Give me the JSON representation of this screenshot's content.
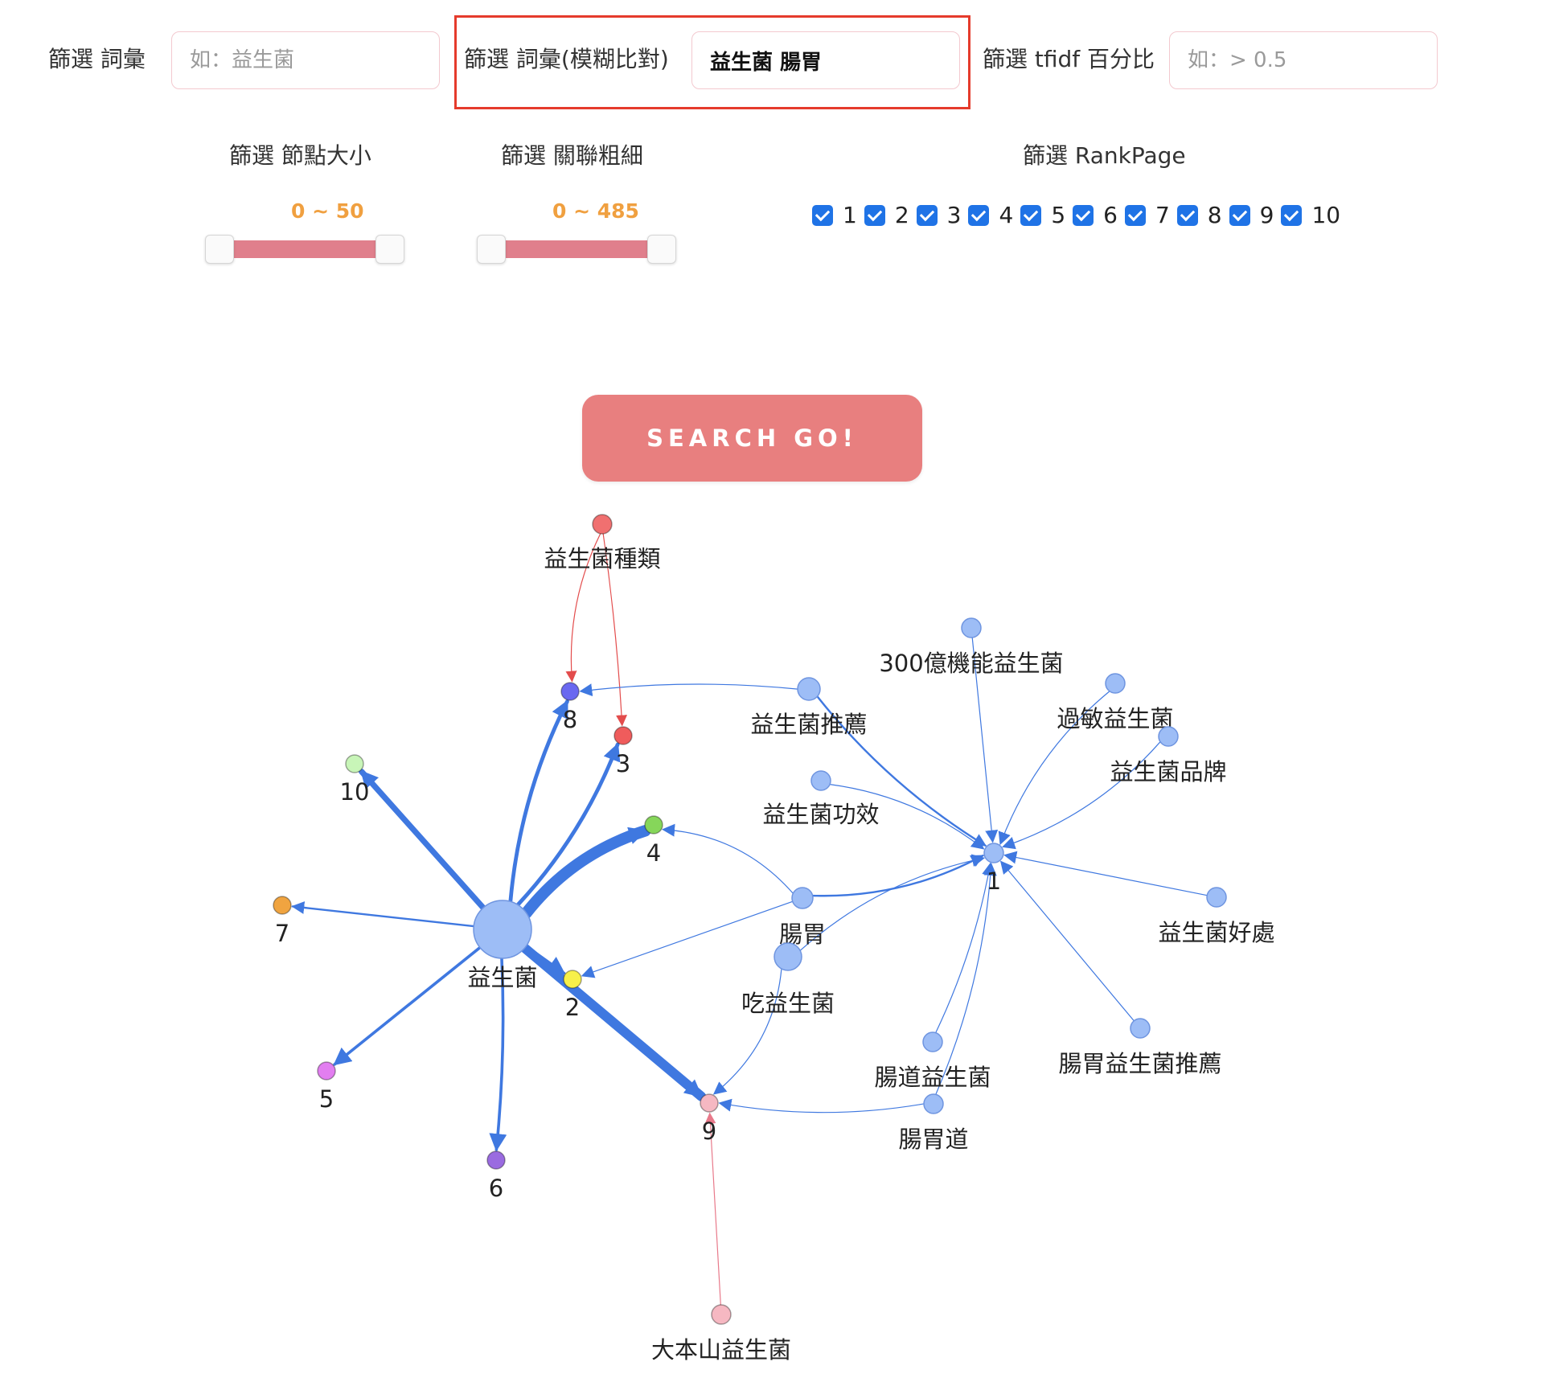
{
  "filters": {
    "term": {
      "label": "篩選 詞彙",
      "placeholder": "如：益生菌",
      "value": ""
    },
    "fuzzy": {
      "label": "篩選 詞彙(模糊比對)",
      "value": "益生菌 腸胃"
    },
    "tfidf": {
      "label": "篩選 tfidf 百分比",
      "placeholder": "如：> 0.5",
      "value": ""
    },
    "node_size": {
      "label": "篩選 節點大小",
      "range_text": "0 ~ 50"
    },
    "edge_width": {
      "label": "篩選 關聯粗細",
      "range_text": "0 ~ 485"
    },
    "rank_page": {
      "label": "篩選 RankPage",
      "options": [
        {
          "label": "1",
          "checked": true
        },
        {
          "label": "2",
          "checked": true
        },
        {
          "label": "3",
          "checked": true
        },
        {
          "label": "4",
          "checked": true
        },
        {
          "label": "5",
          "checked": true
        },
        {
          "label": "6",
          "checked": true
        },
        {
          "label": "7",
          "checked": true
        },
        {
          "label": "8",
          "checked": true
        },
        {
          "label": "9",
          "checked": true
        },
        {
          "label": "10",
          "checked": true
        }
      ]
    }
  },
  "search_button": {
    "label": "SEARCH GO!"
  },
  "colors": {
    "accent_button": "#e87f7f",
    "slider_track": "#e07f8c",
    "slider_value": "#f0a040",
    "highlight": "#e53b2c",
    "edge_blue": "#3f78e0",
    "edge_red": "#e34c4c",
    "edge_pink": "#e8798a"
  },
  "graph": {
    "nodes": [
      {
        "id": "yishengjun",
        "label": "益生菌",
        "color": "#9dbdf6"
      },
      {
        "id": "changwei",
        "label": "腸胃",
        "color": "#9dbdf6"
      },
      {
        "id": "chi",
        "label": "吃益生菌",
        "color": "#9dbdf6"
      },
      {
        "id": "tuijian",
        "label": "益生菌推薦",
        "color": "#9dbdf6"
      },
      {
        "id": "gongxiao",
        "label": "益生菌功效",
        "color": "#9dbdf6"
      },
      {
        "id": "300yi",
        "label": "300億機能益生菌",
        "color": "#9dbdf6"
      },
      {
        "id": "guomin",
        "label": "過敏益生菌",
        "color": "#9dbdf6"
      },
      {
        "id": "pinpai",
        "label": "益生菌品牌",
        "color": "#9dbdf6"
      },
      {
        "id": "haochu",
        "label": "益生菌好處",
        "color": "#9dbdf6"
      },
      {
        "id": "changwei_tuijian",
        "label": "腸胃益生菌推薦",
        "color": "#9dbdf6"
      },
      {
        "id": "changdao_ysj",
        "label": "腸道益生菌",
        "color": "#9dbdf6"
      },
      {
        "id": "changweidao",
        "label": "腸胃道",
        "color": "#9dbdf6"
      },
      {
        "id": "zhonglei",
        "label": "益生菌種類",
        "color": "#f07070"
      },
      {
        "id": "dabenshan",
        "label": "大本山益生菌",
        "color": "#f6b8c2"
      },
      {
        "id": "r1",
        "label": "1",
        "color": "#9dbdf6"
      },
      {
        "id": "r2",
        "label": "2",
        "color": "#f7f04a"
      },
      {
        "id": "r3",
        "label": "3",
        "color": "#ef5c5c"
      },
      {
        "id": "r4",
        "label": "4",
        "color": "#86d65a"
      },
      {
        "id": "r5",
        "label": "5",
        "color": "#e27ef0"
      },
      {
        "id": "r6",
        "label": "6",
        "color": "#9a6be0"
      },
      {
        "id": "r7",
        "label": "7",
        "color": "#f0a440"
      },
      {
        "id": "r8",
        "label": "8",
        "color": "#6a68f0"
      },
      {
        "id": "r9",
        "label": "9",
        "color": "#f6b8c2"
      },
      {
        "id": "r10",
        "label": "10",
        "color": "#c8f5b8"
      }
    ],
    "edges": [
      {
        "from": "yishengjun",
        "to": "r8",
        "weight": 4
      },
      {
        "from": "yishengjun",
        "to": "r3",
        "weight": 4
      },
      {
        "from": "yishengjun",
        "to": "r4",
        "weight": 12
      },
      {
        "from": "yishengjun",
        "to": "r10",
        "weight": 6
      },
      {
        "from": "yishengjun",
        "to": "r7",
        "weight": 2
      },
      {
        "from": "yishengjun",
        "to": "r5",
        "weight": 3
      },
      {
        "from": "yishengjun",
        "to": "r6",
        "weight": 3
      },
      {
        "from": "yishengjun",
        "to": "r2",
        "weight": 3
      },
      {
        "from": "yishengjun",
        "to": "r9",
        "weight": 10
      },
      {
        "from": "zhonglei",
        "to": "r8",
        "weight": 1
      },
      {
        "from": "zhonglei",
        "to": "r3",
        "weight": 1
      },
      {
        "from": "tuijian",
        "to": "r8",
        "weight": 1
      },
      {
        "from": "tuijian",
        "to": "r1",
        "weight": 2
      },
      {
        "from": "300yi",
        "to": "r1",
        "weight": 1
      },
      {
        "from": "guomin",
        "to": "r1",
        "weight": 1
      },
      {
        "from": "pinpai",
        "to": "r1",
        "weight": 1
      },
      {
        "from": "gongxiao",
        "to": "r1",
        "weight": 1
      },
      {
        "from": "changwei",
        "to": "r1",
        "weight": 2
      },
      {
        "from": "changwei",
        "to": "r4",
        "weight": 1
      },
      {
        "from": "changwei",
        "to": "r2",
        "weight": 1
      },
      {
        "from": "chi",
        "to": "r1",
        "weight": 1
      },
      {
        "from": "chi",
        "to": "r9",
        "weight": 1
      },
      {
        "from": "haochu",
        "to": "r1",
        "weight": 1
      },
      {
        "from": "changwei_tuijian",
        "to": "r1",
        "weight": 1
      },
      {
        "from": "changdao_ysj",
        "to": "r1",
        "weight": 1
      },
      {
        "from": "changweidao",
        "to": "r1",
        "weight": 1
      },
      {
        "from": "changweidao",
        "to": "r9",
        "weight": 1
      },
      {
        "from": "dabenshan",
        "to": "r9",
        "weight": 1
      }
    ]
  }
}
